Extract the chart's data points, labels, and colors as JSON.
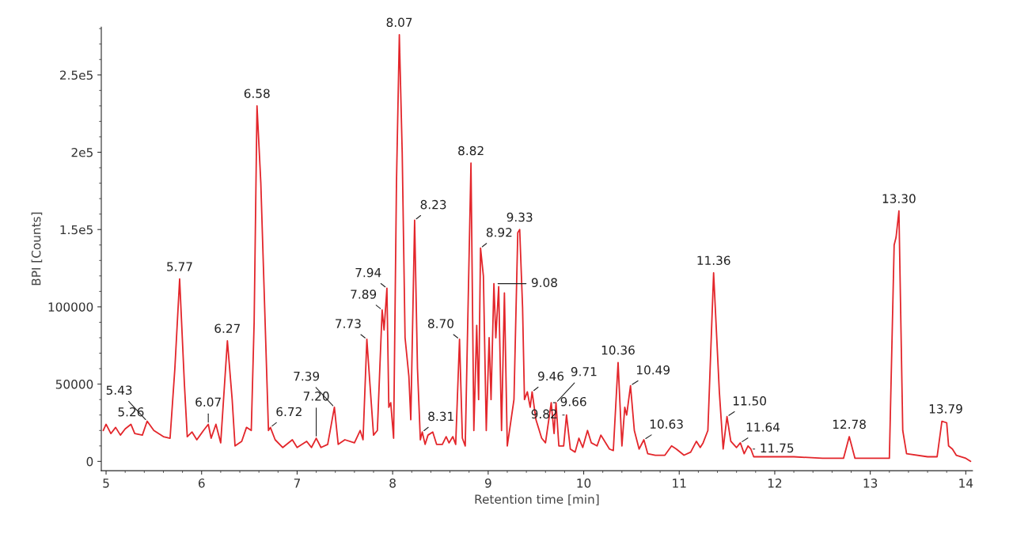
{
  "chart_data": {
    "type": "line",
    "xlabel": "Retention time [min]",
    "ylabel": "BPI [Counts]",
    "xlim": [
      4.95,
      14.07
    ],
    "xticks": [
      5,
      6,
      7,
      8,
      9,
      10,
      11,
      12,
      13,
      14
    ],
    "ylim": [
      -6000,
      281000
    ],
    "yticks": [
      0,
      50000,
      100000,
      {
        "value": 150000,
        "label": "1.5e5"
      },
      {
        "value": 200000,
        "label": "2e5"
      },
      {
        "value": 250000,
        "label": "2.5e5"
      }
    ],
    "grid": false,
    "legend": false,
    "marker": "none",
    "line_style": "solid",
    "series": [
      {
        "color": "#e3262b",
        "x": [
          4.97,
          5.0,
          5.05,
          5.1,
          5.15,
          5.2,
          5.26,
          5.3,
          5.38,
          5.43,
          5.5,
          5.6,
          5.67,
          5.72,
          5.77,
          5.82,
          5.85,
          5.9,
          5.95,
          6.02,
          6.07,
          6.1,
          6.15,
          6.2,
          6.27,
          6.32,
          6.35,
          6.42,
          6.47,
          6.52,
          6.55,
          6.58,
          6.62,
          6.67,
          6.7,
          6.72,
          6.77,
          6.85,
          6.95,
          7.0,
          7.1,
          7.15,
          7.2,
          7.25,
          7.32,
          7.39,
          7.43,
          7.5,
          7.6,
          7.66,
          7.69,
          7.73,
          7.76,
          7.8,
          7.84,
          7.89,
          7.91,
          7.94,
          7.96,
          7.98,
          8.01,
          8.04,
          8.07,
          8.1,
          8.13,
          8.17,
          8.19,
          8.23,
          8.26,
          8.29,
          8.31,
          8.34,
          8.37,
          8.42,
          8.46,
          8.52,
          8.56,
          8.59,
          8.63,
          8.66,
          8.7,
          8.73,
          8.76,
          8.82,
          8.85,
          8.88,
          8.9,
          8.92,
          8.95,
          8.98,
          9.01,
          9.03,
          9.06,
          9.08,
          9.11,
          9.14,
          9.17,
          9.2,
          9.27,
          9.31,
          9.33,
          9.36,
          9.38,
          9.41,
          9.44,
          9.46,
          9.5,
          9.56,
          9.6,
          9.66,
          9.69,
          9.71,
          9.74,
          9.79,
          9.82,
          9.86,
          9.91,
          9.95,
          9.99,
          10.04,
          10.08,
          10.14,
          10.18,
          10.22,
          10.27,
          10.31,
          10.36,
          10.4,
          10.43,
          10.45,
          10.49,
          10.53,
          10.58,
          10.63,
          10.67,
          10.75,
          10.85,
          10.92,
          10.97,
          11.05,
          11.12,
          11.18,
          11.22,
          11.25,
          11.3,
          11.36,
          11.42,
          11.46,
          11.5,
          11.54,
          11.6,
          11.64,
          11.68,
          11.72,
          11.75,
          11.78,
          11.9,
          12.2,
          12.5,
          12.72,
          12.78,
          12.84,
          13.0,
          13.2,
          13.25,
          13.27,
          13.3,
          13.34,
          13.38,
          13.6,
          13.7,
          13.75,
          13.8,
          13.82,
          13.86,
          13.9,
          14.0,
          14.05
        ],
        "values": [
          20000,
          24000,
          18000,
          22000,
          17000,
          21000,
          24000,
          18000,
          17000,
          26000,
          20000,
          16000,
          15000,
          60000,
          118000,
          50000,
          16000,
          19000,
          14000,
          20000,
          24000,
          15000,
          24000,
          12000,
          78000,
          40000,
          10000,
          13000,
          22000,
          20000,
          90000,
          230000,
          180000,
          80000,
          20000,
          22000,
          14000,
          9000,
          14000,
          9000,
          13000,
          9000,
          15000,
          9000,
          11000,
          35000,
          11000,
          14000,
          12000,
          20000,
          14000,
          79000,
          52000,
          17000,
          20000,
          98000,
          85000,
          112000,
          35000,
          38000,
          15000,
          180000,
          276000,
          200000,
          80000,
          55000,
          27000,
          156000,
          60000,
          14000,
          19000,
          11000,
          17000,
          19000,
          11000,
          11000,
          16000,
          12000,
          16000,
          11000,
          79000,
          15000,
          10000,
          193000,
          20000,
          88000,
          40000,
          138000,
          120000,
          20000,
          80000,
          40000,
          115000,
          80000,
          113000,
          20000,
          109000,
          10000,
          40000,
          148000,
          150000,
          100000,
          40000,
          45000,
          35000,
          45000,
          27000,
          15000,
          12000,
          38000,
          18000,
          38000,
          10000,
          10000,
          30000,
          8000,
          6000,
          15000,
          9000,
          20000,
          12000,
          10000,
          17000,
          13000,
          8000,
          7000,
          64000,
          10000,
          35000,
          30000,
          49000,
          20000,
          8000,
          14000,
          5000,
          4000,
          4000,
          10000,
          8000,
          4000,
          6000,
          13000,
          9000,
          12000,
          20000,
          122000,
          45000,
          8000,
          29000,
          13000,
          9000,
          12000,
          5000,
          10000,
          8000,
          3000,
          3000,
          3000,
          2000,
          2000,
          16000,
          2000,
          2000,
          2000,
          140000,
          145000,
          162000,
          20000,
          5000,
          3000,
          3000,
          26000,
          25000,
          10000,
          8000,
          4000,
          2000,
          0
        ]
      }
    ],
    "annotations": [
      {
        "text": "5.26",
        "x": 5.26,
        "y": 24000
      },
      {
        "text": "5.43",
        "x": 5.43,
        "y": 26000
      },
      {
        "text": "5.77",
        "x": 5.77,
        "y": 118000
      },
      {
        "text": "6.07",
        "x": 6.07,
        "y": 24000
      },
      {
        "text": "6.27",
        "x": 6.27,
        "y": 78000
      },
      {
        "text": "6.58",
        "x": 6.58,
        "y": 230000
      },
      {
        "text": "6.72",
        "x": 6.72,
        "y": 22000
      },
      {
        "text": "7.20",
        "x": 7.2,
        "y": 15000
      },
      {
        "text": "7.39",
        "x": 7.39,
        "y": 35000
      },
      {
        "text": "7.73",
        "x": 7.73,
        "y": 79000
      },
      {
        "text": "7.89",
        "x": 7.89,
        "y": 98000
      },
      {
        "text": "7.94",
        "x": 7.94,
        "y": 112000
      },
      {
        "text": "8.07",
        "x": 8.07,
        "y": 276000
      },
      {
        "text": "8.23",
        "x": 8.23,
        "y": 156000
      },
      {
        "text": "8.31",
        "x": 8.31,
        "y": 19000
      },
      {
        "text": "8.70",
        "x": 8.7,
        "y": 79000
      },
      {
        "text": "8.82",
        "x": 8.82,
        "y": 193000
      },
      {
        "text": "8.92",
        "x": 8.92,
        "y": 138000
      },
      {
        "text": "9.08",
        "x": 9.08,
        "y": 115000
      },
      {
        "text": "9.33",
        "x": 9.33,
        "y": 150000
      },
      {
        "text": "9.46",
        "x": 9.46,
        "y": 45000
      },
      {
        "text": "9.66",
        "x": 9.66,
        "y": 38000
      },
      {
        "text": "9.71",
        "x": 9.71,
        "y": 38000
      },
      {
        "text": "9.82",
        "x": 9.82,
        "y": 30000
      },
      {
        "text": "10.36",
        "x": 10.36,
        "y": 64000
      },
      {
        "text": "10.49",
        "x": 10.49,
        "y": 49000
      },
      {
        "text": "10.63",
        "x": 10.63,
        "y": 14000
      },
      {
        "text": "11.36",
        "x": 11.36,
        "y": 122000
      },
      {
        "text": "11.50",
        "x": 11.5,
        "y": 29000
      },
      {
        "text": "11.64",
        "x": 11.64,
        "y": 12000
      },
      {
        "text": "11.75",
        "x": 11.75,
        "y": 8000
      },
      {
        "text": "12.78",
        "x": 12.78,
        "y": 16000
      },
      {
        "text": "13.30",
        "x": 13.3,
        "y": 162000
      },
      {
        "text": "13.79",
        "x": 13.79,
        "y": 26000
      }
    ]
  }
}
